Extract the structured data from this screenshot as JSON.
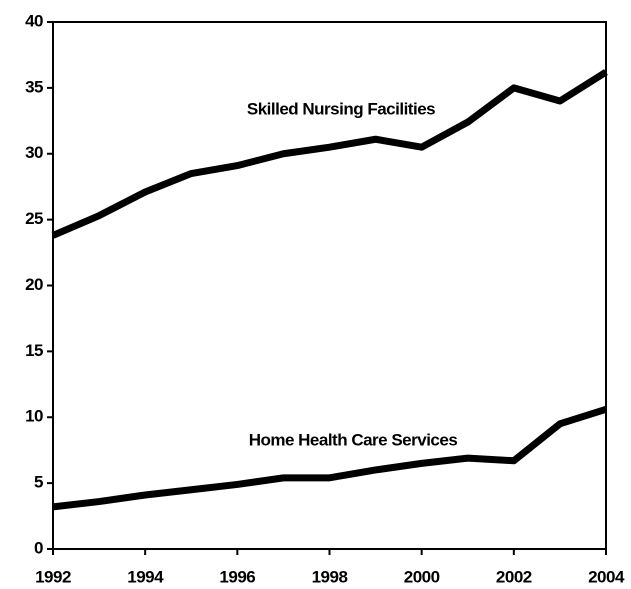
{
  "chart_data": {
    "type": "line",
    "x": [
      1992,
      1993,
      1994,
      1995,
      1996,
      1997,
      1998,
      1999,
      2000,
      2001,
      2002,
      2003,
      2004
    ],
    "series": [
      {
        "name": "Skilled Nursing Facilities",
        "color": "#000000",
        "values": [
          23.8,
          25.3,
          27.1,
          28.5,
          29.1,
          30.0,
          30.5,
          31.1,
          30.5,
          32.4,
          35.0,
          34.0,
          36.2
        ]
      },
      {
        "name": "Home Health Care Services",
        "color": "#000000",
        "values": [
          3.2,
          3.6,
          4.1,
          4.5,
          4.9,
          5.4,
          5.4,
          6.0,
          6.5,
          6.9,
          6.7,
          9.5,
          10.6
        ]
      }
    ],
    "xlim": [
      1992,
      2004
    ],
    "xticks": [
      1992,
      1994,
      1996,
      1998,
      2000,
      2002,
      2004
    ],
    "ylim": [
      0,
      40
    ],
    "yticks": [
      0,
      5,
      10,
      15,
      20,
      25,
      30,
      35,
      40
    ],
    "grid": false
  }
}
